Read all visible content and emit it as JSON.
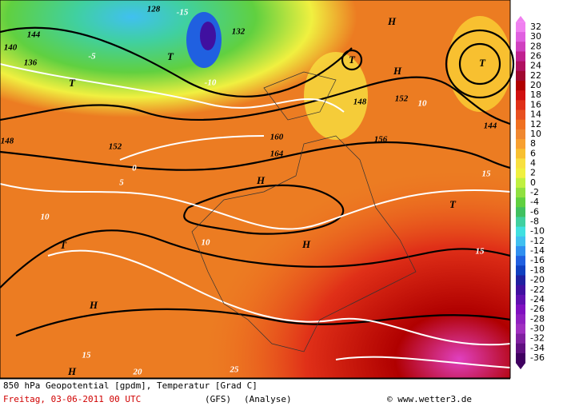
{
  "map": {
    "labels": [
      "144",
      "H",
      "T",
      "T",
      "H",
      "T",
      "T",
      "H",
      "H",
      "T",
      "T",
      "H",
      "H",
      "144",
      "140",
      "136",
      "152",
      "156",
      "160",
      "164",
      "148",
      "10",
      "10",
      "15",
      "15",
      "20",
      "25",
      "0",
      "5",
      "-5",
      "-10",
      "-15",
      "132",
      "128",
      "152",
      "148",
      "10",
      "15"
    ]
  },
  "legend": {
    "labels": [
      32,
      30,
      28,
      26,
      24,
      22,
      20,
      18,
      16,
      14,
      12,
      10,
      8,
      6,
      4,
      2,
      0,
      -2,
      -4,
      -6,
      -8,
      -10,
      -12,
      -14,
      -16,
      -18,
      -20,
      -22,
      -24,
      -26,
      -28,
      -30,
      -32,
      -34,
      -36
    ],
    "colors": [
      "#f080f0",
      "#e060e0",
      "#d040c0",
      "#c02090",
      "#b01060",
      "#a00830",
      "#b00000",
      "#d01010",
      "#e03018",
      "#e85020",
      "#f07020",
      "#f08830",
      "#f8a030",
      "#f8c030",
      "#f8e040",
      "#f0f040",
      "#c0f040",
      "#90e040",
      "#60d040",
      "#40c060",
      "#40d0a0",
      "#40e0e0",
      "#40c0f0",
      "#3090f0",
      "#2060e0",
      "#1040c0",
      "#2020a0",
      "#4010a0",
      "#6010b0",
      "#8010c0",
      "#9020c0",
      "#a030c0",
      "#8020a0",
      "#601080",
      "#400060"
    ]
  },
  "footer": {
    "title": "850 hPa Geopotential [gpdm], Temperatur [Grad C]",
    "date": "Freitag, 03-06-2011   00 UTC",
    "model": "(GFS)",
    "run": "(Analyse)",
    "source": "© www.wetter3.de"
  }
}
